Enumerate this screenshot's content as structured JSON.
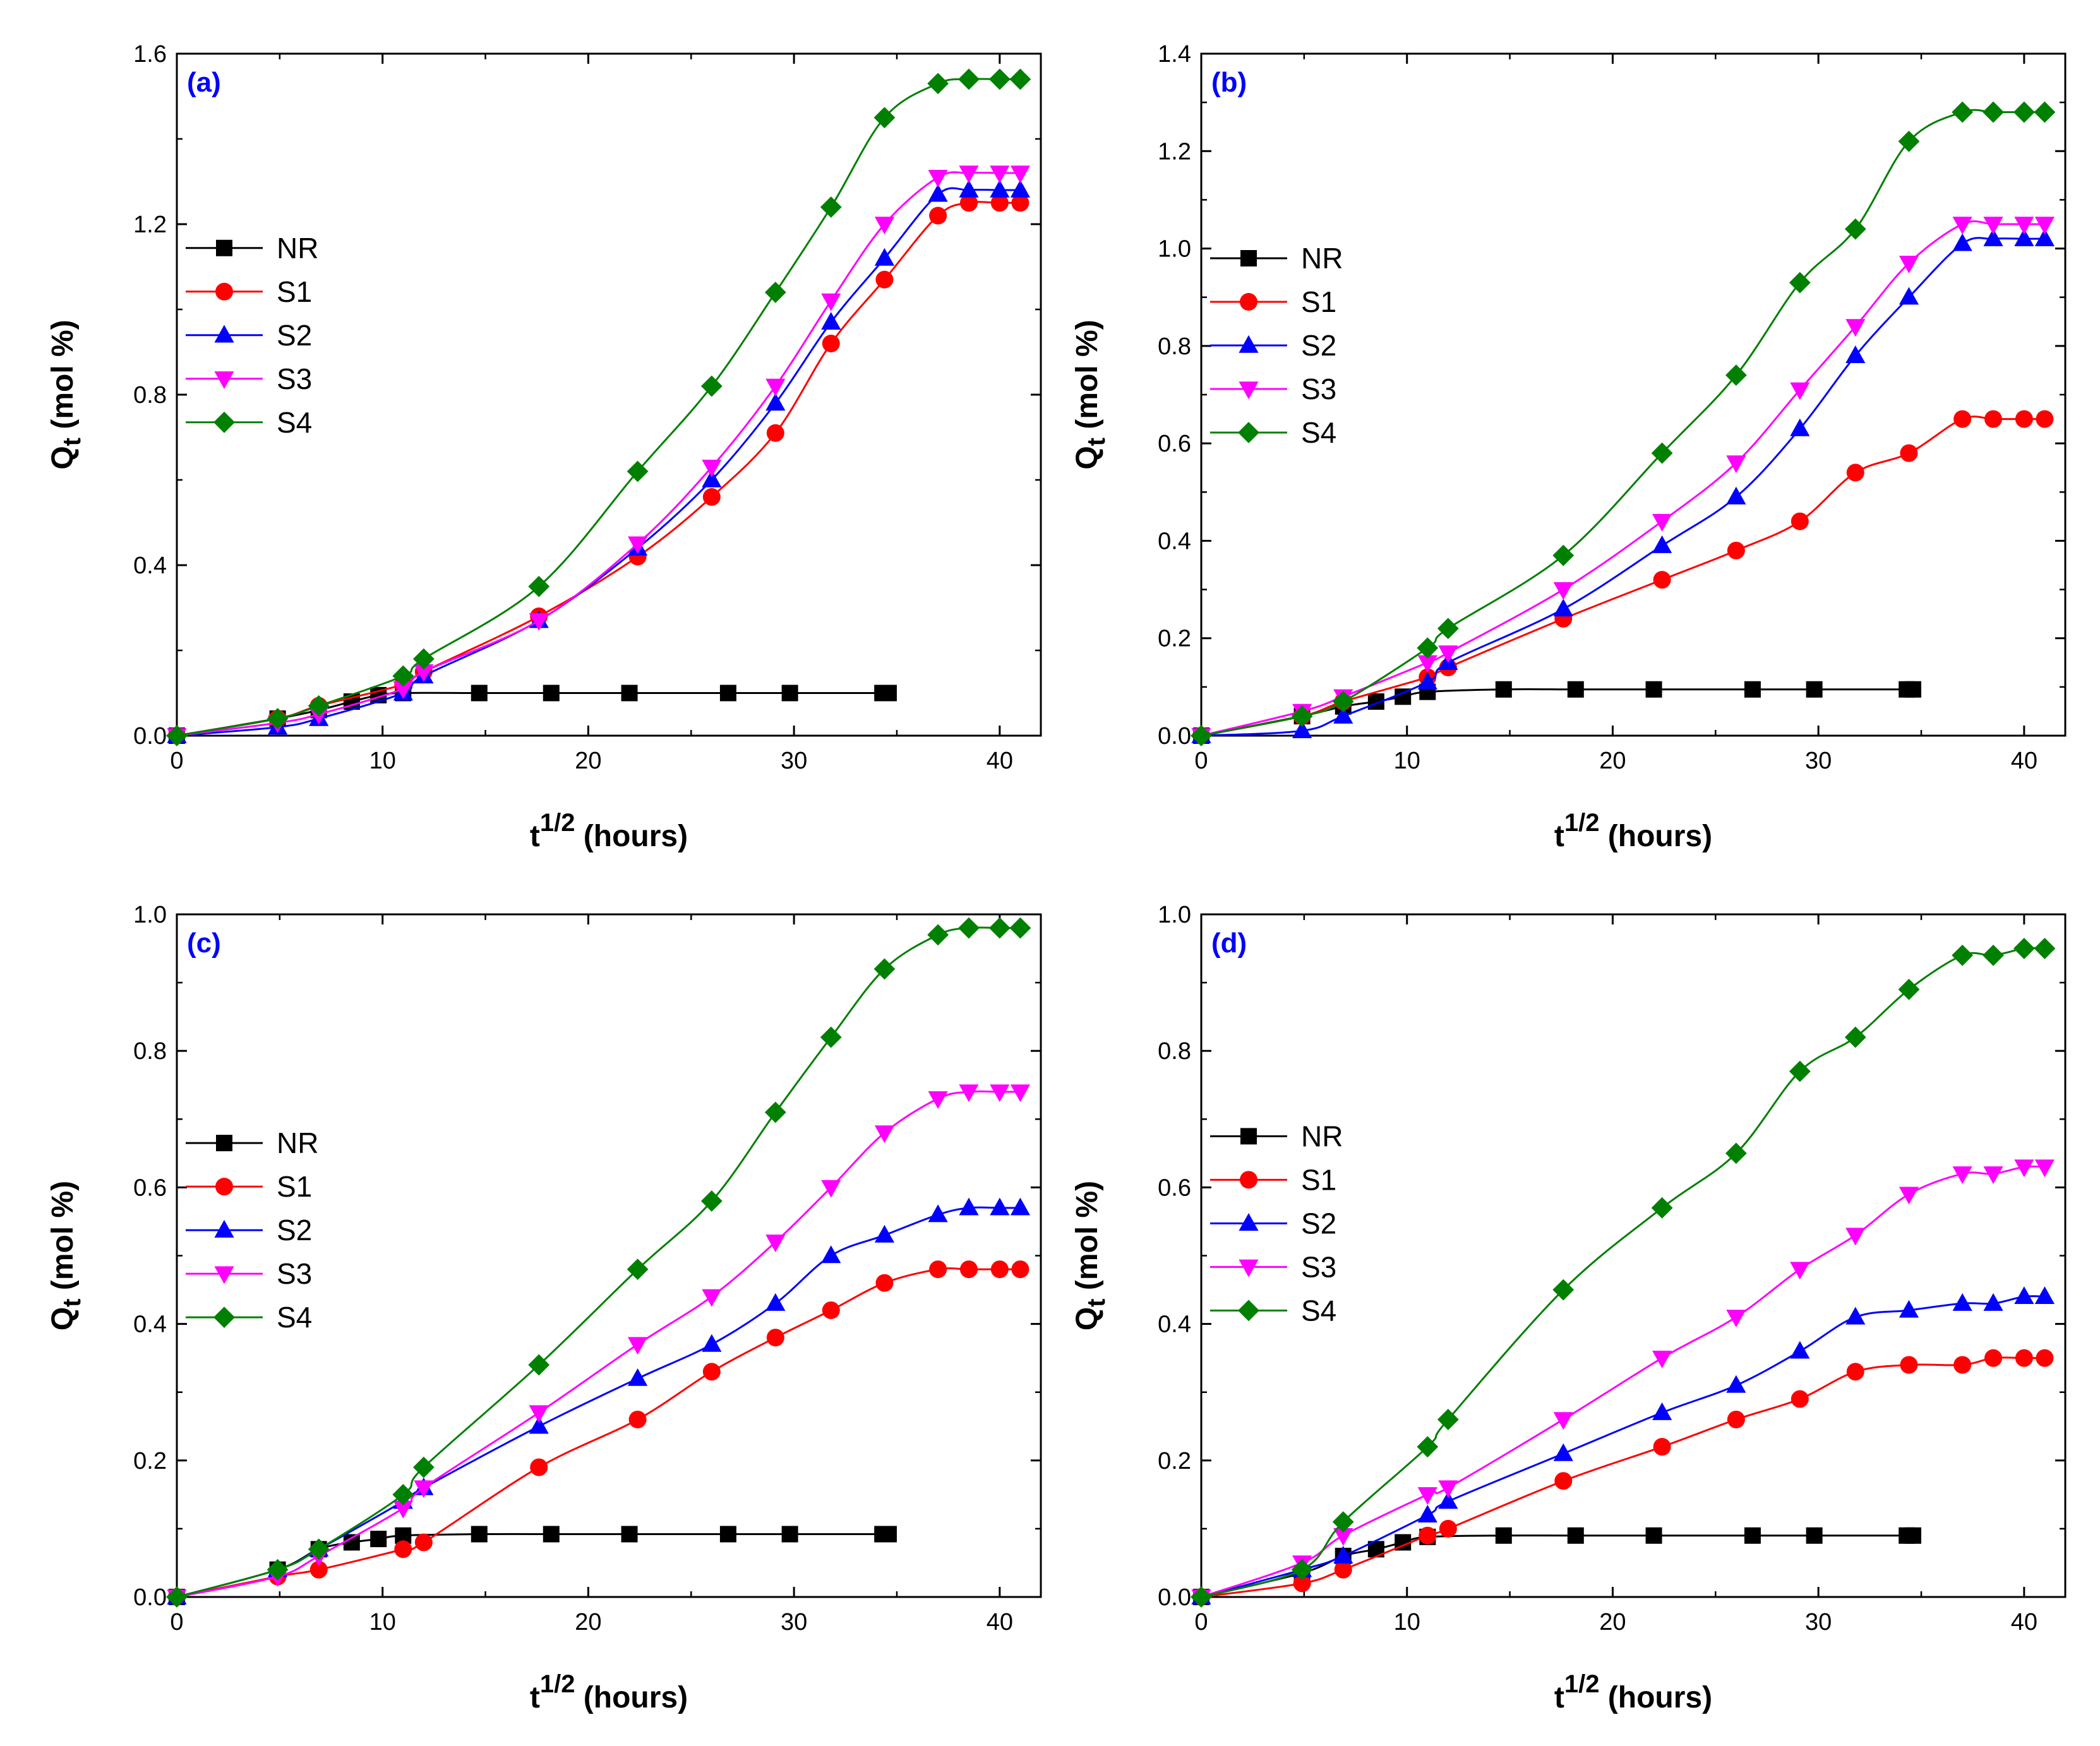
{
  "figure": {
    "colors": {
      "NR": "#000000",
      "S1": "#ff0000",
      "S2": "#0000ff",
      "S3": "#ff00ff",
      "S4": "#008000",
      "panel_label": "#0000ff"
    }
  },
  "chart_data": [
    {
      "type": "line",
      "panel": "(a)",
      "xlabel": "t^1/2 (hours)",
      "ylabel": "Qt (mol %)",
      "xlim": [
        0,
        42
      ],
      "ylim": [
        0,
        1.6
      ],
      "xticks": [
        0,
        10,
        20,
        30,
        40
      ],
      "yticks": [
        0.0,
        0.4,
        0.8,
        1.2,
        1.6
      ],
      "legend_position": "mid-left",
      "series": [
        {
          "name": "NR",
          "marker": "square",
          "x": [
            0,
            4.9,
            6.9,
            8.5,
            9.8,
            11,
            14.7,
            18.2,
            22,
            26.8,
            29.8,
            34.3,
            34.6
          ],
          "y": [
            0,
            0.04,
            0.06,
            0.08,
            0.095,
            0.1,
            0.1,
            0.1,
            0.1,
            0.1,
            0.1,
            0.1,
            0.1
          ]
        },
        {
          "name": "S1",
          "marker": "circle",
          "x": [
            0,
            4.9,
            6.9,
            11,
            12,
            17.6,
            22.4,
            26,
            29.1,
            31.8,
            34.4,
            37,
            38.5,
            40,
            41
          ],
          "y": [
            0,
            0.04,
            0.07,
            0.12,
            0.15,
            0.28,
            0.42,
            0.56,
            0.71,
            0.92,
            1.07,
            1.22,
            1.25,
            1.25,
            1.25
          ]
        },
        {
          "name": "S2",
          "marker": "triangle-up",
          "x": [
            0,
            4.9,
            6.9,
            11,
            12,
            17.6,
            22.4,
            26,
            29.1,
            31.8,
            34.4,
            37,
            38.5,
            40,
            41
          ],
          "y": [
            0,
            0.02,
            0.04,
            0.1,
            0.14,
            0.27,
            0.44,
            0.6,
            0.78,
            0.97,
            1.12,
            1.27,
            1.28,
            1.28,
            1.28
          ]
        },
        {
          "name": "S3",
          "marker": "triangle-down",
          "x": [
            0,
            4.9,
            6.9,
            11,
            12,
            17.6,
            22.4,
            26,
            29.1,
            31.8,
            34.4,
            37,
            38.5,
            40,
            41
          ],
          "y": [
            0,
            0.03,
            0.05,
            0.11,
            0.15,
            0.27,
            0.45,
            0.63,
            0.82,
            1.02,
            1.2,
            1.31,
            1.32,
            1.32,
            1.32
          ]
        },
        {
          "name": "S4",
          "marker": "diamond",
          "x": [
            0,
            4.9,
            6.9,
            11,
            12,
            17.6,
            22.4,
            26,
            29.1,
            31.8,
            34.4,
            37,
            38.5,
            40,
            41
          ],
          "y": [
            0,
            0.04,
            0.07,
            0.14,
            0.18,
            0.35,
            0.62,
            0.82,
            1.04,
            1.24,
            1.45,
            1.53,
            1.54,
            1.54,
            1.54
          ]
        }
      ]
    },
    {
      "type": "line",
      "panel": "(b)",
      "xlabel": "t^1/2 (hours)",
      "ylabel": "Qt (mol %)",
      "xlim": [
        0,
        42
      ],
      "ylim": [
        0,
        1.4
      ],
      "xticks": [
        0,
        10,
        20,
        30,
        40
      ],
      "yticks": [
        0.0,
        0.2,
        0.4,
        0.6,
        0.8,
        1.0,
        1.2,
        1.4
      ],
      "legend_position": "mid-left",
      "series": [
        {
          "name": "NR",
          "marker": "square",
          "x": [
            0,
            4.9,
            6.9,
            8.5,
            9.8,
            11,
            14.7,
            18.2,
            22,
            26.8,
            29.8,
            34.3,
            34.6
          ],
          "y": [
            0,
            0.04,
            0.06,
            0.07,
            0.08,
            0.09,
            0.095,
            0.095,
            0.095,
            0.095,
            0.095,
            0.095,
            0.095
          ]
        },
        {
          "name": "S1",
          "marker": "circle",
          "x": [
            0,
            4.9,
            6.9,
            11,
            12,
            17.6,
            22.4,
            26,
            29.1,
            31.8,
            34.4,
            37,
            38.5,
            40,
            41
          ],
          "y": [
            0,
            0.04,
            0.07,
            0.12,
            0.14,
            0.24,
            0.32,
            0.38,
            0.44,
            0.54,
            0.58,
            0.65,
            0.65,
            0.65,
            0.65
          ]
        },
        {
          "name": "S2",
          "marker": "triangle-up",
          "x": [
            0,
            4.9,
            6.9,
            11,
            12,
            17.6,
            22.4,
            26,
            29.1,
            31.8,
            34.4,
            37,
            38.5,
            40,
            41
          ],
          "y": [
            0,
            0.01,
            0.04,
            0.11,
            0.15,
            0.26,
            0.39,
            0.49,
            0.63,
            0.78,
            0.9,
            1.01,
            1.02,
            1.02,
            1.02
          ]
        },
        {
          "name": "S3",
          "marker": "triangle-down",
          "x": [
            0,
            4.9,
            6.9,
            11,
            12,
            17.6,
            22.4,
            26,
            29.1,
            31.8,
            34.4,
            37,
            38.5,
            40,
            41
          ],
          "y": [
            0,
            0.05,
            0.08,
            0.15,
            0.17,
            0.3,
            0.44,
            0.56,
            0.71,
            0.84,
            0.97,
            1.05,
            1.05,
            1.05,
            1.05
          ]
        },
        {
          "name": "S4",
          "marker": "diamond",
          "x": [
            0,
            4.9,
            6.9,
            11,
            12,
            17.6,
            22.4,
            26,
            29.1,
            31.8,
            34.4,
            37,
            38.5,
            40,
            41
          ],
          "y": [
            0,
            0.04,
            0.07,
            0.18,
            0.22,
            0.37,
            0.58,
            0.74,
            0.93,
            1.04,
            1.22,
            1.28,
            1.28,
            1.28,
            1.28
          ]
        }
      ]
    },
    {
      "type": "line",
      "panel": "(c)",
      "xlabel": "t^1/2 (hours)",
      "ylabel": "Qt (mol %)",
      "xlim": [
        0,
        42
      ],
      "ylim": [
        0,
        1.0
      ],
      "xticks": [
        0,
        10,
        20,
        30,
        40
      ],
      "yticks": [
        0.0,
        0.2,
        0.4,
        0.6,
        0.8,
        1.0
      ],
      "legend_position": "mid-left",
      "series": [
        {
          "name": "NR",
          "marker": "square",
          "x": [
            0,
            4.9,
            6.9,
            8.5,
            9.8,
            11,
            14.7,
            18.2,
            22,
            26.8,
            29.8,
            34.3,
            34.6
          ],
          "y": [
            0,
            0.04,
            0.07,
            0.08,
            0.085,
            0.09,
            0.092,
            0.092,
            0.092,
            0.092,
            0.092,
            0.092,
            0.092
          ]
        },
        {
          "name": "S1",
          "marker": "circle",
          "x": [
            0,
            4.9,
            6.9,
            11,
            12,
            17.6,
            22.4,
            26,
            29.1,
            31.8,
            34.4,
            37,
            38.5,
            40,
            41
          ],
          "y": [
            0,
            0.03,
            0.04,
            0.07,
            0.08,
            0.19,
            0.26,
            0.33,
            0.38,
            0.42,
            0.46,
            0.48,
            0.48,
            0.48,
            0.48
          ]
        },
        {
          "name": "S2",
          "marker": "triangle-up",
          "x": [
            0,
            4.9,
            6.9,
            11,
            12,
            17.6,
            22.4,
            26,
            29.1,
            31.8,
            34.4,
            37,
            38.5,
            40,
            41
          ],
          "y": [
            0,
            0.04,
            0.07,
            0.14,
            0.16,
            0.25,
            0.32,
            0.37,
            0.43,
            0.5,
            0.53,
            0.56,
            0.57,
            0.57,
            0.57
          ]
        },
        {
          "name": "S3",
          "marker": "triangle-down",
          "x": [
            0,
            4.9,
            6.9,
            11,
            12,
            17.6,
            22.4,
            26,
            29.1,
            31.8,
            34.4,
            37,
            38.5,
            40,
            41
          ],
          "y": [
            0,
            0.03,
            0.06,
            0.13,
            0.16,
            0.27,
            0.37,
            0.44,
            0.52,
            0.6,
            0.68,
            0.73,
            0.74,
            0.74,
            0.74
          ]
        },
        {
          "name": "S4",
          "marker": "diamond",
          "x": [
            0,
            4.9,
            6.9,
            11,
            12,
            17.6,
            22.4,
            26,
            29.1,
            31.8,
            34.4,
            37,
            38.5,
            40,
            41
          ],
          "y": [
            0,
            0.04,
            0.07,
            0.15,
            0.19,
            0.34,
            0.48,
            0.58,
            0.71,
            0.82,
            0.92,
            0.97,
            0.98,
            0.98,
            0.98
          ]
        }
      ]
    },
    {
      "type": "line",
      "panel": "(d)",
      "xlabel": "t^1/2 (hours)",
      "ylabel": "Qt (mol %)",
      "xlim": [
        0,
        42
      ],
      "ylim": [
        0,
        1.0
      ],
      "xticks": [
        0,
        10,
        20,
        30,
        40
      ],
      "yticks": [
        0.0,
        0.2,
        0.4,
        0.6,
        0.8,
        1.0
      ],
      "legend_position": "mid-left",
      "series": [
        {
          "name": "NR",
          "marker": "square",
          "x": [
            0,
            4.9,
            6.9,
            8.5,
            9.8,
            11,
            14.7,
            18.2,
            22,
            26.8,
            29.8,
            34.3,
            34.6
          ],
          "y": [
            0,
            0.035,
            0.06,
            0.07,
            0.08,
            0.088,
            0.09,
            0.09,
            0.09,
            0.09,
            0.09,
            0.09,
            0.09
          ]
        },
        {
          "name": "S1",
          "marker": "circle",
          "x": [
            0,
            4.9,
            6.9,
            11,
            12,
            17.6,
            22.4,
            26,
            29.1,
            31.8,
            34.4,
            37,
            38.5,
            40,
            41
          ],
          "y": [
            0,
            0.02,
            0.04,
            0.09,
            0.1,
            0.17,
            0.22,
            0.26,
            0.29,
            0.33,
            0.34,
            0.34,
            0.35,
            0.35,
            0.35
          ]
        },
        {
          "name": "S2",
          "marker": "triangle-up",
          "x": [
            0,
            4.9,
            6.9,
            11,
            12,
            17.6,
            22.4,
            26,
            29.1,
            31.8,
            34.4,
            37,
            38.5,
            40,
            41
          ],
          "y": [
            0,
            0.04,
            0.06,
            0.12,
            0.14,
            0.21,
            0.27,
            0.31,
            0.36,
            0.41,
            0.42,
            0.43,
            0.43,
            0.44,
            0.44
          ]
        },
        {
          "name": "S3",
          "marker": "triangle-down",
          "x": [
            0,
            4.9,
            6.9,
            11,
            12,
            17.6,
            22.4,
            26,
            29.1,
            31.8,
            34.4,
            37,
            38.5,
            40,
            41
          ],
          "y": [
            0,
            0.05,
            0.09,
            0.15,
            0.16,
            0.26,
            0.35,
            0.41,
            0.48,
            0.53,
            0.59,
            0.62,
            0.62,
            0.63,
            0.63
          ]
        },
        {
          "name": "S4",
          "marker": "diamond",
          "x": [
            0,
            4.9,
            6.9,
            11,
            12,
            17.6,
            22.4,
            26,
            29.1,
            31.8,
            34.4,
            37,
            38.5,
            40,
            41
          ],
          "y": [
            0,
            0.04,
            0.11,
            0.22,
            0.26,
            0.45,
            0.57,
            0.65,
            0.77,
            0.82,
            0.89,
            0.94,
            0.94,
            0.95,
            0.95
          ]
        }
      ]
    }
  ]
}
